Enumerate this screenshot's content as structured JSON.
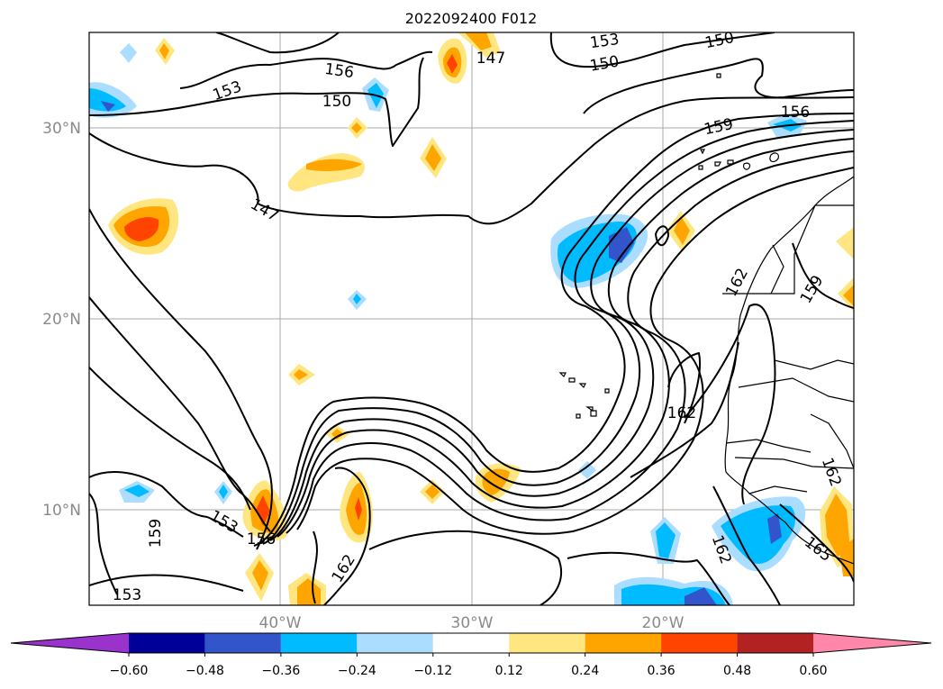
{
  "title": "2022092400 F012",
  "lat_labels": [
    "30°N",
    "20°N",
    "10°N"
  ],
  "lon_labels": [
    "40°W",
    "30°W",
    "20°W"
  ],
  "colorbar": {
    "ticks": [
      "−0.60",
      "−0.48",
      "−0.36",
      "−0.24",
      "−0.12",
      "0.12",
      "0.24",
      "0.36",
      "0.48",
      "0.60"
    ],
    "colors": [
      "#9933cc",
      "#000099",
      "#3355cc",
      "#00bbff",
      "#aaddff",
      "#ffffff",
      "#ffe680",
      "#ffa500",
      "#ff4400",
      "#b22222",
      "#ff88aa"
    ],
    "extend": "both"
  },
  "contour_labels": [
    "156",
    "153",
    "150",
    "147",
    "153",
    "150",
    "150",
    "159",
    "156",
    "147",
    "162",
    "159",
    "162",
    "159",
    "153",
    "156",
    "162",
    "153",
    "162",
    "165",
    "162"
  ]
}
